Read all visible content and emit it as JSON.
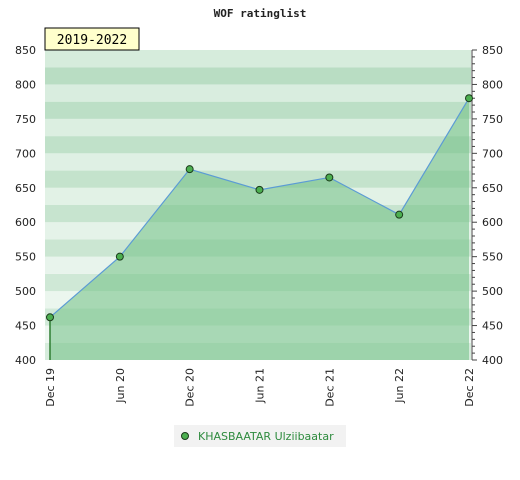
{
  "chart_data": {
    "type": "area",
    "title": "WOF ratinglist",
    "period_label": "2019-2022",
    "x_ticks": [
      "Dec 19",
      "Jun 20",
      "Dec 20",
      "Jun 21",
      "Dec 21",
      "Jun 22",
      "Dec 22"
    ],
    "y_ticks": [
      400,
      450,
      500,
      550,
      600,
      650,
      700,
      750,
      800,
      850
    ],
    "ylim": [
      400,
      850
    ],
    "grid": "horizontal bands",
    "legend_position": "bottom-center",
    "series": [
      {
        "name": "KHASBAATAR Ulziibaatar",
        "x": [
          "Dec 19",
          "Jun 20",
          "Dec 20",
          "Jun 21",
          "Dec 21",
          "Jun 22",
          "Dec 22"
        ],
        "values": [
          462,
          550,
          677,
          647,
          665,
          611,
          780
        ]
      }
    ],
    "colors": {
      "line": "#5b9bd5",
      "area": "#6fbf83",
      "marker": "#4caf50",
      "badge_bg": "#ffffcc",
      "band_light": "#f0f8f2",
      "band_dark": "#b7dcc1"
    }
  }
}
